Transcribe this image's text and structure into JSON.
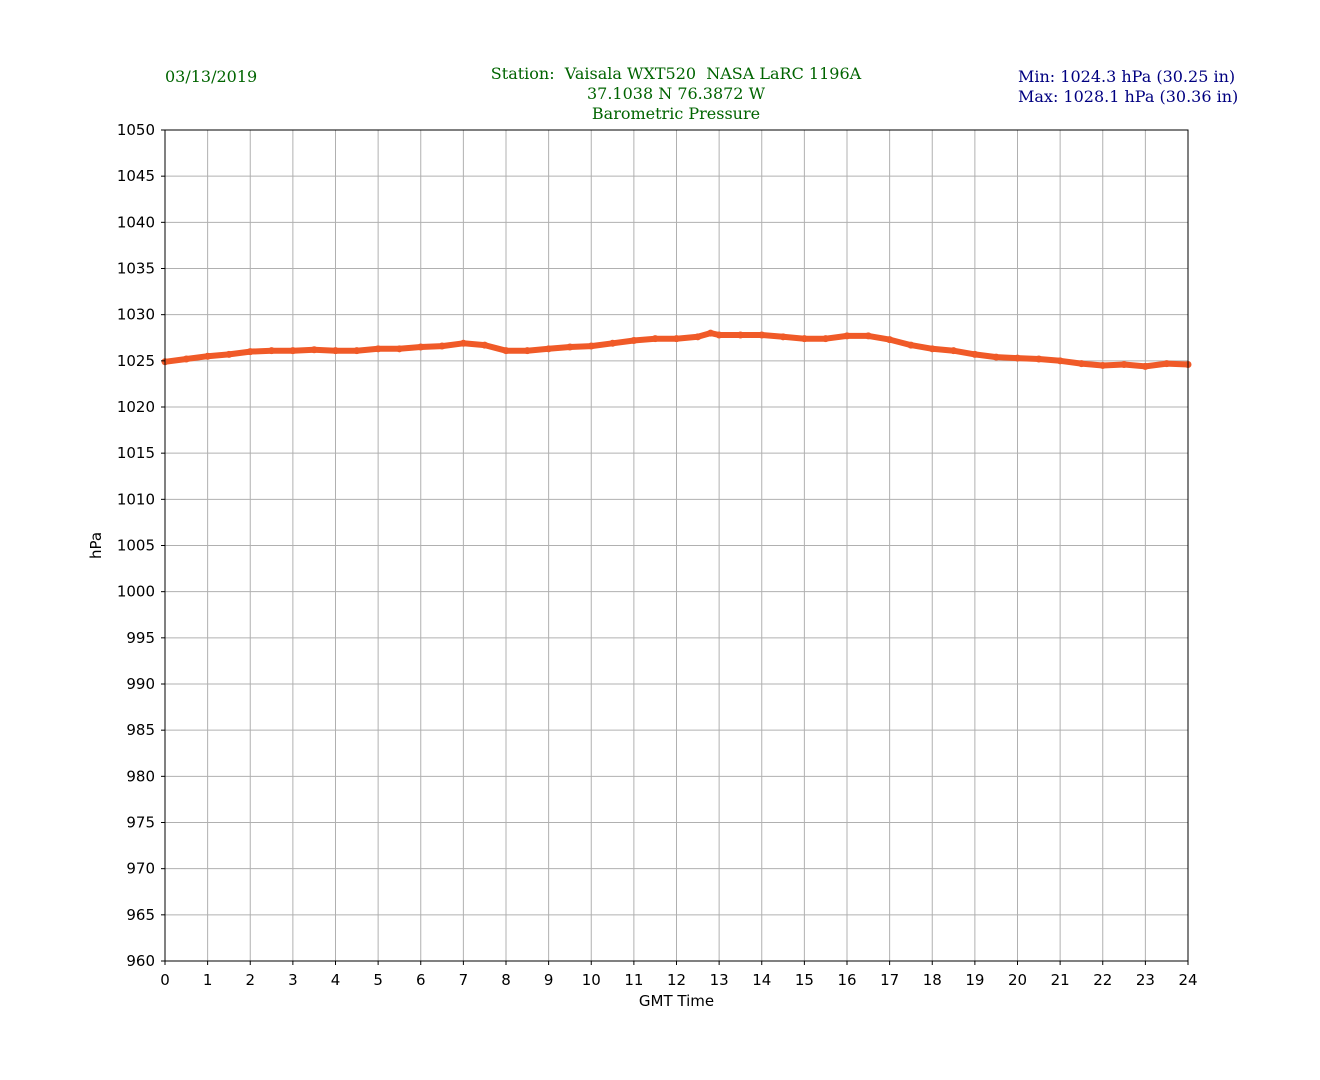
{
  "header": {
    "date": "03/13/2019",
    "station_line": "Station:  Vaisala WXT520  NASA LaRC 1196A",
    "coords_line": "37.1038 N 76.3872 W",
    "title": "Barometric Pressure",
    "min_line": "Min: 1024.3 hPa (30.25 in)",
    "max_line": "Max: 1028.1 hPa (30.36 in)"
  },
  "colors": {
    "header_green": "#006400",
    "header_navy": "#000080",
    "series": "#f05a28",
    "grid": "#b0b0b0",
    "axis": "#000000"
  },
  "chart_data": {
    "type": "line",
    "title": "Barometric Pressure",
    "xlabel": "GMT Time",
    "ylabel": "hPa",
    "xlim": [
      0,
      24
    ],
    "ylim": [
      960,
      1050
    ],
    "xticks": [
      0,
      1,
      2,
      3,
      4,
      5,
      6,
      7,
      8,
      9,
      10,
      11,
      12,
      13,
      14,
      15,
      16,
      17,
      18,
      19,
      20,
      21,
      22,
      23,
      24
    ],
    "yticks": [
      960,
      965,
      970,
      975,
      980,
      985,
      990,
      995,
      1000,
      1005,
      1010,
      1015,
      1020,
      1025,
      1030,
      1035,
      1040,
      1045,
      1050
    ],
    "grid": true,
    "series": [
      {
        "x": [
          0,
          0.5,
          1,
          1.5,
          2,
          2.5,
          3,
          3.5,
          4,
          4.5,
          5,
          5.5,
          6,
          6.5,
          7,
          7.5,
          8,
          8.5,
          9,
          9.5,
          10,
          10.5,
          11,
          11.5,
          12,
          12.5,
          12.8,
          13,
          13.5,
          14,
          14.5,
          15,
          15.5,
          16,
          16.5,
          17,
          17.5,
          18,
          18.5,
          19,
          19.5,
          20,
          20.5,
          21,
          21.5,
          22,
          22.5,
          23,
          23.5,
          24
        ],
        "y": [
          1024.9,
          1025.2,
          1025.5,
          1025.7,
          1026.0,
          1026.1,
          1026.1,
          1026.2,
          1026.1,
          1026.1,
          1026.3,
          1026.3,
          1026.5,
          1026.6,
          1026.9,
          1026.7,
          1026.1,
          1026.1,
          1026.3,
          1026.5,
          1026.6,
          1026.9,
          1027.2,
          1027.4,
          1027.4,
          1027.6,
          1028.0,
          1027.8,
          1027.8,
          1027.8,
          1027.6,
          1027.4,
          1027.4,
          1027.7,
          1027.7,
          1027.3,
          1026.7,
          1026.3,
          1026.1,
          1025.7,
          1025.4,
          1025.3,
          1025.2,
          1025.0,
          1024.7,
          1024.5,
          1024.6,
          1024.4,
          1024.7,
          1024.6
        ]
      }
    ]
  }
}
